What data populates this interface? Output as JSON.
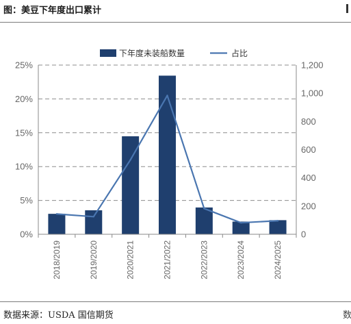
{
  "header": {
    "title": "图：美豆下年度出口累计"
  },
  "footer": {
    "source": "数据来源：USDA 国信期货",
    "right_mark": "数"
  },
  "chart_data": {
    "type": "bar+line",
    "categories": [
      "2018/2019",
      "2019/2020",
      "2020/2021",
      "2021/2022",
      "2022/2023",
      "2023/2024",
      "2024/2025"
    ],
    "series": [
      {
        "name": "下年度未装船数量",
        "type": "bar",
        "axis": "right",
        "color": "#1f3f6e",
        "values": [
          145,
          170,
          695,
          1125,
          190,
          90,
          100
        ]
      },
      {
        "name": "占比",
        "type": "line",
        "axis": "left",
        "color": "#4a76b0",
        "values": [
          3.0,
          2.6,
          11.0,
          20.5,
          3.8,
          1.7,
          2.0
        ]
      }
    ],
    "left_axis": {
      "ylim": [
        0,
        25
      ],
      "ticks": [
        0,
        5,
        10,
        15,
        20,
        25
      ],
      "tick_labels": [
        "0%",
        "5%",
        "10%",
        "15%",
        "20%",
        "25%"
      ]
    },
    "right_axis": {
      "ylim": [
        0,
        1200
      ],
      "ticks": [
        0,
        200,
        400,
        600,
        800,
        1000,
        1200
      ],
      "tick_labels": [
        "0",
        "200",
        "400",
        "600",
        "800",
        "1,000",
        "1,200"
      ]
    },
    "grid": "horizontal dashed",
    "legend_position": "top-center"
  }
}
